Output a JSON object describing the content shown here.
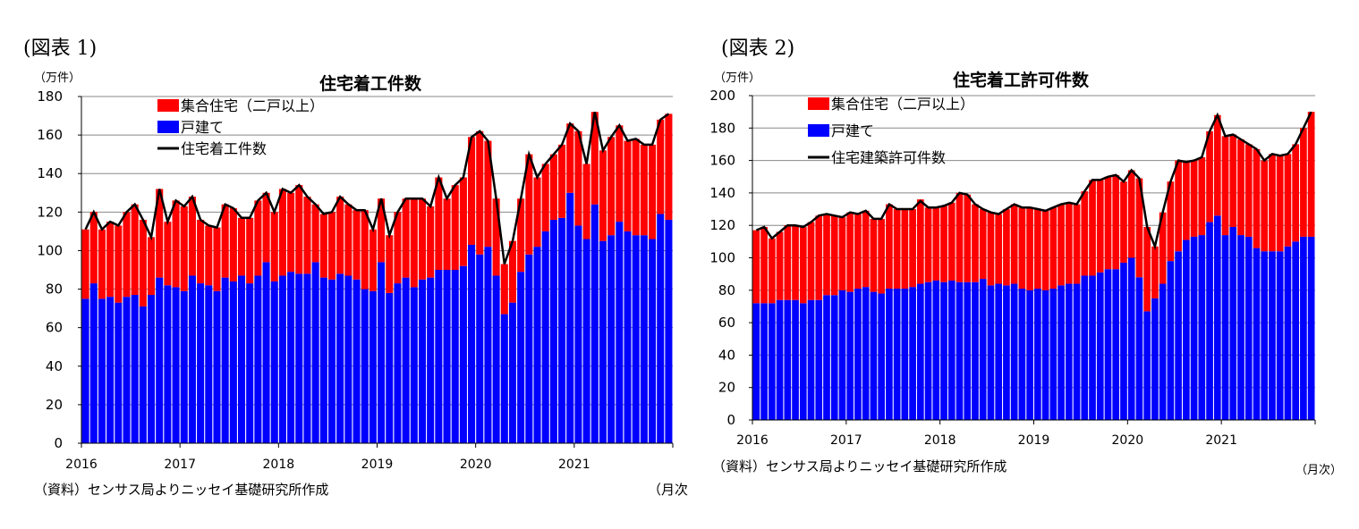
{
  "panels": [
    {
      "label": "(図表 1)",
      "unit": "（万件）",
      "source": "（資料）センサス局よりニッセイ基礎研究所作成",
      "xunit": "（月次"
    },
    {
      "label": "(図表 2)",
      "unit": "（万件）",
      "source": "（資料）センサス局よりニッセイ基礎研究所作成",
      "xunit": "（月次）"
    }
  ],
  "colors": {
    "multi": "#ff0000",
    "single": "#0000ff",
    "line": "#000000"
  },
  "chart_data": [
    {
      "type": "bar",
      "title": "住宅着工件数",
      "ylim": [
        0,
        180
      ],
      "yticks": [
        0,
        20,
        40,
        60,
        80,
        100,
        120,
        140,
        160,
        180
      ],
      "xticklabels": [
        "2016",
        "2017",
        "2018",
        "2019",
        "2020",
        "2021"
      ],
      "grid": true,
      "legend_position": "top-left",
      "legend": [
        "集合住宅（二戸以上）",
        "戸建て",
        "住宅着工件数"
      ],
      "series": [
        {
          "name": "戸建て",
          "values": [
            75,
            83,
            75,
            76,
            73,
            76,
            77,
            71,
            77,
            86,
            82,
            81,
            79,
            87,
            83,
            82,
            79,
            86,
            84,
            87,
            83,
            87,
            94,
            84,
            87,
            89,
            88,
            88,
            94,
            86,
            85,
            88,
            87,
            85,
            80,
            79,
            94,
            78,
            83,
            86,
            81,
            85,
            86,
            90,
            90,
            90,
            92,
            103,
            98,
            102,
            87,
            67,
            73,
            89,
            98,
            102,
            110,
            116,
            117,
            130,
            113,
            106,
            124,
            105,
            108,
            115,
            110,
            108,
            108,
            106,
            119,
            116
          ]
        },
        {
          "name": "集合住宅（二戸以上）",
          "values": [
            36,
            37,
            36,
            39,
            40,
            44,
            47,
            45,
            30,
            46,
            33,
            45,
            44,
            41,
            33,
            31,
            33,
            38,
            38,
            30,
            34,
            39,
            36,
            36,
            45,
            41,
            46,
            40,
            30,
            33,
            35,
            40,
            37,
            36,
            41,
            32,
            33,
            30,
            37,
            41,
            46,
            42,
            37,
            48,
            37,
            44,
            46,
            56,
            64,
            55,
            40,
            26,
            32,
            38,
            52,
            36,
            35,
            34,
            38,
            36,
            49,
            39,
            48,
            47,
            51,
            50,
            47,
            50,
            47,
            49,
            49,
            55
          ]
        },
        {
          "name": "住宅着工件数",
          "values": [
            111,
            120,
            111,
            115,
            113,
            120,
            124,
            116,
            107,
            132,
            115,
            126,
            123,
            128,
            116,
            113,
            112,
            124,
            122,
            117,
            117,
            126,
            130,
            120,
            132,
            130,
            134,
            128,
            124,
            119,
            120,
            128,
            124,
            121,
            121,
            111,
            127,
            108,
            120,
            127,
            127,
            127,
            123,
            138,
            127,
            134,
            138,
            159,
            162,
            157,
            127,
            93,
            105,
            127,
            150,
            138,
            145,
            150,
            155,
            166,
            162,
            145,
            172,
            152,
            159,
            165,
            157,
            158,
            155,
            155,
            168,
            171
          ]
        }
      ]
    },
    {
      "type": "bar",
      "title": "住宅着工許可件数",
      "ylim": [
        0,
        200
      ],
      "yticks": [
        0,
        20,
        40,
        60,
        80,
        100,
        120,
        140,
        160,
        180,
        200
      ],
      "xticklabels": [
        "2016",
        "2017",
        "2018",
        "2019",
        "2020",
        "2021"
      ],
      "grid": true,
      "legend_position": "top-left",
      "legend": [
        "集合住宅（二戸以上）",
        "戸建て",
        "住宅建築許可件数"
      ],
      "series": [
        {
          "name": "戸建て",
          "values": [
            72,
            72,
            72,
            74,
            74,
            74,
            72,
            74,
            74,
            77,
            77,
            80,
            79,
            81,
            82,
            79,
            78,
            81,
            81,
            81,
            82,
            84,
            85,
            86,
            85,
            86,
            85,
            85,
            85,
            87,
            83,
            84,
            83,
            84,
            81,
            80,
            81,
            80,
            81,
            83,
            84,
            84,
            89,
            89,
            91,
            93,
            93,
            97,
            100,
            88,
            67,
            75,
            84,
            98,
            104,
            111,
            113,
            114,
            122,
            126,
            114,
            119,
            114,
            113,
            106,
            104,
            104,
            104,
            107,
            110,
            113,
            113
          ]
        },
        {
          "name": "集合住宅（二戸以上）",
          "values": [
            45,
            47,
            40,
            42,
            46,
            46,
            47,
            48,
            52,
            50,
            49,
            45,
            49,
            46,
            47,
            45,
            46,
            52,
            49,
            49,
            48,
            52,
            46,
            45,
            47,
            48,
            55,
            54,
            48,
            43,
            45,
            43,
            47,
            49,
            50,
            51,
            49,
            49,
            50,
            50,
            50,
            49,
            52,
            59,
            57,
            57,
            58,
            50,
            54,
            61,
            52,
            32,
            44,
            49,
            56,
            48,
            47,
            48,
            56,
            62,
            61,
            57,
            59,
            57,
            61,
            56,
            60,
            59,
            57,
            60,
            67,
            77
          ]
        },
        {
          "name": "住宅建築許可件数",
          "values": [
            117,
            119,
            112,
            116,
            120,
            120,
            119,
            122,
            126,
            127,
            126,
            125,
            128,
            127,
            129,
            124,
            124,
            133,
            130,
            130,
            130,
            135,
            131,
            131,
            132,
            134,
            140,
            139,
            133,
            130,
            128,
            127,
            130,
            133,
            131,
            131,
            130,
            129,
            131,
            133,
            134,
            133,
            141,
            148,
            148,
            150,
            151,
            147,
            154,
            149,
            119,
            107,
            128,
            147,
            160,
            159,
            160,
            162,
            178,
            188,
            175,
            176,
            173,
            170,
            167,
            160,
            164,
            163,
            164,
            170,
            180,
            190
          ]
        }
      ]
    }
  ]
}
